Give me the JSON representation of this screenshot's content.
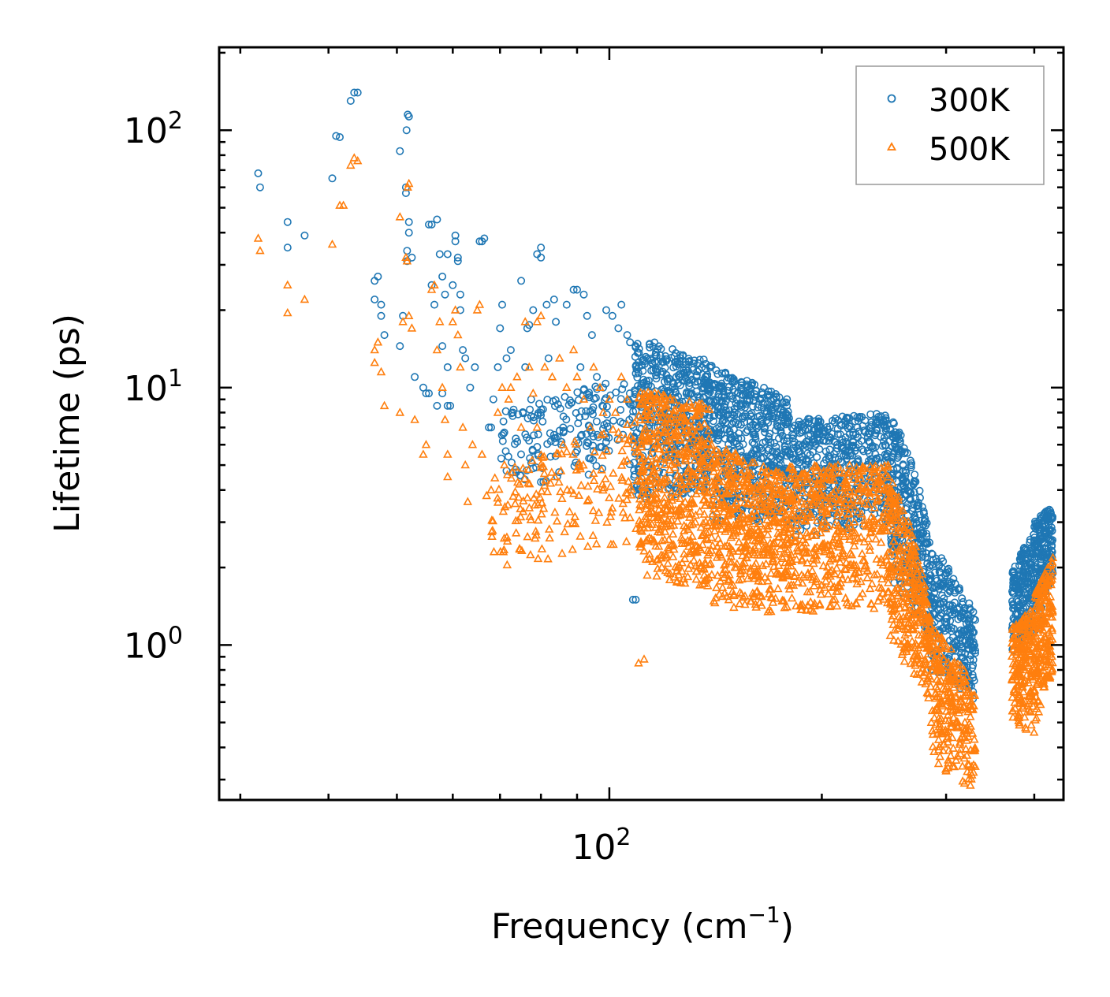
{
  "chart_data": {
    "type": "scatter",
    "title": "",
    "xlabel": "Frequency (cm",
    "xlabel_sup": "−1",
    "xlabel_close": ")",
    "ylabel": "Lifetime (ps)",
    "xscale": "log",
    "yscale": "log",
    "xlim": [
      28,
      440
    ],
    "ylim": [
      0.25,
      210
    ],
    "x_tick_labels": [
      {
        "value": 100,
        "base": "10",
        "exp": "2"
      }
    ],
    "y_tick_labels": [
      {
        "value": 1,
        "base": "10",
        "exp": "0"
      },
      {
        "value": 10,
        "base": "10",
        "exp": "1"
      },
      {
        "value": 100,
        "base": "10",
        "exp": "2"
      }
    ],
    "legend_position": "top-right",
    "series": [
      {
        "name": "300K",
        "marker": "circle",
        "color": "#1f77b4",
        "points": [
          [
            31.8,
            68
          ],
          [
            32.0,
            60
          ],
          [
            35.0,
            44
          ],
          [
            35.0,
            35
          ],
          [
            37.0,
            39
          ],
          [
            40.5,
            65
          ],
          [
            41.0,
            95
          ],
          [
            41.5,
            94
          ],
          [
            43.0,
            130
          ],
          [
            43.5,
            140
          ],
          [
            44.0,
            140
          ],
          [
            46.5,
            26
          ],
          [
            46.5,
            22
          ],
          [
            47.0,
            27
          ],
          [
            47.5,
            21
          ],
          [
            47.5,
            19
          ],
          [
            48.0,
            16
          ],
          [
            50.5,
            83
          ],
          [
            50.5,
            14.5
          ],
          [
            51.0,
            19
          ],
          [
            51.5,
            60
          ],
          [
            51.5,
            57
          ],
          [
            51.6,
            100
          ],
          [
            51.8,
            115
          ],
          [
            52.0,
            113
          ],
          [
            52.0,
            44
          ],
          [
            52.0,
            40
          ],
          [
            51.7,
            34
          ],
          [
            51.7,
            31
          ],
          [
            52.5,
            32
          ],
          [
            53.0,
            11
          ],
          [
            54.5,
            10
          ],
          [
            55.0,
            9.5
          ],
          [
            55.5,
            9.5
          ],
          [
            55.5,
            43
          ],
          [
            56.0,
            43
          ],
          [
            57.0,
            45
          ],
          [
            57.5,
            33
          ],
          [
            56.0,
            25
          ],
          [
            56.5,
            21
          ],
          [
            57.0,
            8.5
          ],
          [
            58.0,
            27
          ],
          [
            58.5,
            23
          ],
          [
            59.0,
            33
          ],
          [
            58.0,
            14.5
          ],
          [
            58.0,
            9.5
          ],
          [
            59.0,
            8.5
          ],
          [
            59.5,
            8.5
          ],
          [
            59.0,
            12
          ],
          [
            60.0,
            25
          ],
          [
            60.5,
            37
          ],
          [
            60.5,
            39
          ],
          [
            61.0,
            32
          ],
          [
            61.0,
            31
          ],
          [
            61.5,
            23
          ],
          [
            61.5,
            20
          ],
          [
            62.0,
            14
          ],
          [
            62.5,
            13
          ],
          [
            63.5,
            10
          ],
          [
            64.5,
            12
          ],
          [
            65.5,
            37
          ],
          [
            66.0,
            37
          ],
          [
            66.5,
            38
          ],
          [
            67.5,
            7
          ],
          [
            68.0,
            7
          ],
          [
            68.5,
            9
          ],
          [
            69.5,
            12
          ],
          [
            70.0,
            17
          ],
          [
            70.5,
            21
          ],
          [
            71.5,
            13
          ],
          [
            72.5,
            14
          ],
          [
            73.0,
            8
          ],
          [
            75.0,
            26
          ],
          [
            76.0,
            12
          ],
          [
            76.5,
            17
          ],
          [
            77.0,
            17.5
          ],
          [
            77.5,
            9
          ],
          [
            78.0,
            20
          ],
          [
            79.0,
            33
          ],
          [
            80.0,
            35
          ],
          [
            80.0,
            32
          ],
          [
            81.5,
            21
          ],
          [
            82.0,
            13
          ],
          [
            83.5,
            22
          ],
          [
            84.0,
            18
          ],
          [
            85.5,
            6
          ],
          [
            86.0,
            7
          ],
          [
            87.0,
            21
          ],
          [
            89.0,
            24
          ],
          [
            90.0,
            24
          ],
          [
            91.0,
            12
          ],
          [
            92.0,
            23
          ],
          [
            93.0,
            19
          ],
          [
            94.5,
            16
          ],
          [
            96.0,
            11
          ],
          [
            98.0,
            10
          ],
          [
            99.0,
            20
          ],
          [
            101.0,
            19
          ],
          [
            103.0,
            17
          ],
          [
            104.0,
            21
          ],
          [
            106.0,
            16
          ],
          [
            107.0,
            15
          ],
          [
            108.0,
            1.5
          ],
          [
            109.0,
            1.5
          ]
        ],
        "bands": [
          {
            "x": [
              70,
              108
            ],
            "lo": [
              4.0,
              4.8
            ],
            "hi": [
              8.0,
              11.0
            ],
            "density": 30
          },
          {
            "x": [
              108,
              140
            ],
            "lo": [
              3.5,
              4.0
            ],
            "hi": [
              16.0,
              12.5
            ],
            "density": 90
          },
          {
            "x": [
              140,
              180
            ],
            "lo": [
              3.0,
              3.0
            ],
            "hi": [
              12.0,
              9.0
            ],
            "density": 85
          },
          {
            "x": [
              180,
              250
            ],
            "lo": [
              2.5,
              3.0
            ],
            "hi": [
              7.5,
              8.0
            ],
            "density": 85
          },
          {
            "x": [
              250,
              285
            ],
            "lo": [
              1.8,
              1.0
            ],
            "hi": [
              8.0,
              2.5
            ],
            "density": 55
          },
          {
            "x": [
              285,
              330
            ],
            "lo": [
              0.8,
              0.6
            ],
            "hi": [
              2.5,
              1.3
            ],
            "density": 45
          },
          {
            "x": [
              372,
              400
            ],
            "lo": [
              0.9,
              1.1
            ],
            "hi": [
              1.9,
              2.8
            ],
            "density": 35
          },
          {
            "x": [
              400,
              425
            ],
            "lo": [
              1.1,
              1.8
            ],
            "hi": [
              3.0,
              3.5
            ],
            "density": 35
          }
        ]
      },
      {
        "name": "500K",
        "marker": "triangle",
        "color": "#ff7f0e",
        "points": [
          [
            31.8,
            38
          ],
          [
            32.0,
            34
          ],
          [
            35.0,
            25
          ],
          [
            35.0,
            19.5
          ],
          [
            37.0,
            22
          ],
          [
            40.5,
            36
          ],
          [
            41.5,
            51
          ],
          [
            42.0,
            51
          ],
          [
            43.0,
            73
          ],
          [
            43.5,
            78
          ],
          [
            44.0,
            76
          ],
          [
            46.5,
            14
          ],
          [
            46.5,
            12.5
          ],
          [
            47.0,
            15
          ],
          [
            47.5,
            11.5
          ],
          [
            48.0,
            8.5
          ],
          [
            50.5,
            46
          ],
          [
            50.5,
            8.0
          ],
          [
            51.0,
            18
          ],
          [
            51.5,
            32
          ],
          [
            51.7,
            31
          ],
          [
            51.8,
            60
          ],
          [
            52.0,
            62
          ],
          [
            52.0,
            19
          ],
          [
            52.5,
            17
          ],
          [
            53.0,
            7.5
          ],
          [
            54.5,
            5.5
          ],
          [
            55.0,
            6
          ],
          [
            56.0,
            24
          ],
          [
            56.5,
            25
          ],
          [
            57.0,
            14
          ],
          [
            57.5,
            18
          ],
          [
            58.0,
            10
          ],
          [
            58.5,
            7.5
          ],
          [
            59.0,
            5.5
          ],
          [
            59.0,
            4.5
          ],
          [
            60.0,
            18
          ],
          [
            60.5,
            20
          ],
          [
            61.0,
            16
          ],
          [
            61.5,
            12
          ],
          [
            62.0,
            7
          ],
          [
            62.5,
            5
          ],
          [
            63.0,
            3.6
          ],
          [
            64.0,
            6
          ],
          [
            65.0,
            20
          ],
          [
            65.5,
            21
          ],
          [
            66.0,
            5.5
          ],
          [
            67.0,
            3.8
          ],
          [
            68.0,
            4
          ],
          [
            69.5,
            8
          ],
          [
            70.5,
            10
          ],
          [
            71.0,
            5
          ],
          [
            72.0,
            9
          ],
          [
            72.5,
            10
          ],
          [
            74.0,
            11
          ],
          [
            75.0,
            7
          ],
          [
            76.0,
            18
          ],
          [
            77.0,
            12
          ],
          [
            78.0,
            9.5
          ],
          [
            79.0,
            7
          ],
          [
            79.0,
            18
          ],
          [
            80.0,
            19
          ],
          [
            81.0,
            12
          ],
          [
            83.0,
            11
          ],
          [
            85.0,
            13
          ],
          [
            86.0,
            6
          ],
          [
            87.0,
            10
          ],
          [
            89.0,
            14
          ],
          [
            90.0,
            11
          ],
          [
            92.0,
            9
          ],
          [
            94.0,
            7
          ],
          [
            95.0,
            12
          ],
          [
            97.0,
            10
          ],
          [
            98.0,
            8
          ],
          [
            100.0,
            9
          ],
          [
            102.0,
            8
          ],
          [
            104.0,
            11
          ],
          [
            106.0,
            9
          ],
          [
            110.0,
            0.85
          ],
          [
            112.0,
            0.88
          ]
        ],
        "bands": [
          {
            "x": [
              68,
              110
            ],
            "lo": [
              2.0,
              2.2
            ],
            "hi": [
              4.5,
              7.5
            ],
            "density": 30
          },
          {
            "x": [
              110,
              140
            ],
            "lo": [
              1.8,
              1.6
            ],
            "hi": [
              10.0,
              8.5
            ],
            "density": 90
          },
          {
            "x": [
              140,
              180
            ],
            "lo": [
              1.4,
              1.3
            ],
            "hi": [
              6.0,
              4.5
            ],
            "density": 85
          },
          {
            "x": [
              180,
              250
            ],
            "lo": [
              1.3,
              1.4
            ],
            "hi": [
              5.0,
              5.0
            ],
            "density": 85
          },
          {
            "x": [
              250,
              285
            ],
            "lo": [
              1.0,
              0.6
            ],
            "hi": [
              4.5,
              1.3
            ],
            "density": 55
          },
          {
            "x": [
              285,
              330
            ],
            "lo": [
              0.35,
              0.27
            ],
            "hi": [
              1.2,
              0.7
            ],
            "density": 45
          },
          {
            "x": [
              372,
              400
            ],
            "lo": [
              0.5,
              0.45
            ],
            "hi": [
              1.2,
              1.4
            ],
            "density": 35
          },
          {
            "x": [
              400,
              425
            ],
            "lo": [
              0.45,
              0.8
            ],
            "hi": [
              1.6,
              2.2
            ],
            "density": 35
          }
        ]
      }
    ]
  }
}
